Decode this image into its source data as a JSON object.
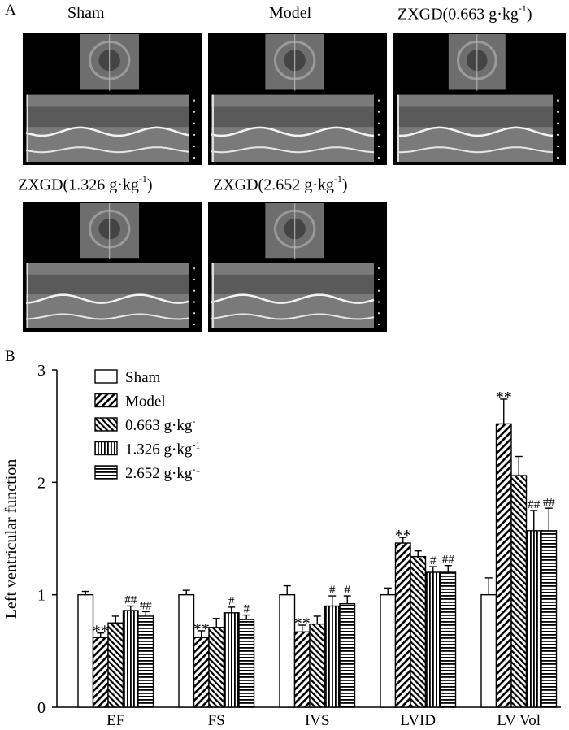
{
  "panel_a": {
    "letter": "A",
    "panels": [
      {
        "title": "Sham",
        "sup": ""
      },
      {
        "title": "Model",
        "sup": ""
      },
      {
        "title": "ZXGD(0.663 g·kg",
        "sup": "-1",
        "close": ")"
      },
      {
        "title": "ZXGD(1.326 g·kg",
        "sup": "-1",
        "close": ")"
      },
      {
        "title": "ZXGD(2.652 g·kg",
        "sup": "-1",
        "close": ")"
      }
    ]
  },
  "chart_data": {
    "panel_letter": "B",
    "type": "bar",
    "ylabel": "Left ventricular function",
    "ylim": [
      0,
      3
    ],
    "yticks": [
      0,
      1,
      2,
      3
    ],
    "categories": [
      "EF",
      "FS",
      "IVS",
      "LVID",
      "LV Vol"
    ],
    "legend_position": "top-left",
    "series": [
      {
        "name": "Sham",
        "sup": "",
        "pattern": "white",
        "values": [
          1.0,
          1.0,
          1.0,
          1.0,
          1.0
        ],
        "errors": [
          0.03,
          0.04,
          0.08,
          0.06,
          0.15
        ],
        "marks": [
          "",
          "",
          "",
          "",
          ""
        ]
      },
      {
        "name": "Model",
        "sup": "",
        "pattern": "diag-right",
        "values": [
          0.62,
          0.62,
          0.67,
          1.46,
          2.52
        ],
        "errors": [
          0.04,
          0.06,
          0.06,
          0.05,
          0.22
        ],
        "marks": [
          "**",
          "**",
          "**",
          "**",
          "**"
        ]
      },
      {
        "name": "0.663 g·kg",
        "sup": "-1",
        "pattern": "diag-left",
        "values": [
          0.75,
          0.71,
          0.74,
          1.34,
          2.06
        ],
        "errors": [
          0.06,
          0.08,
          0.07,
          0.05,
          0.17
        ],
        "marks": [
          "",
          "",
          "",
          "",
          ""
        ]
      },
      {
        "name": "1.326 g·kg",
        "sup": "-1",
        "pattern": "vertical",
        "values": [
          0.86,
          0.84,
          0.9,
          1.2,
          1.57
        ],
        "errors": [
          0.04,
          0.05,
          0.09,
          0.05,
          0.18
        ],
        "marks": [
          "##",
          "#",
          "#",
          "#",
          "##"
        ]
      },
      {
        "name": "2.652 g·kg",
        "sup": "-1",
        "pattern": "horizontal",
        "values": [
          0.81,
          0.78,
          0.92,
          1.2,
          1.57
        ],
        "errors": [
          0.04,
          0.04,
          0.07,
          0.06,
          0.2
        ],
        "marks": [
          "##",
          "#",
          "#",
          "##",
          "##"
        ]
      }
    ]
  }
}
